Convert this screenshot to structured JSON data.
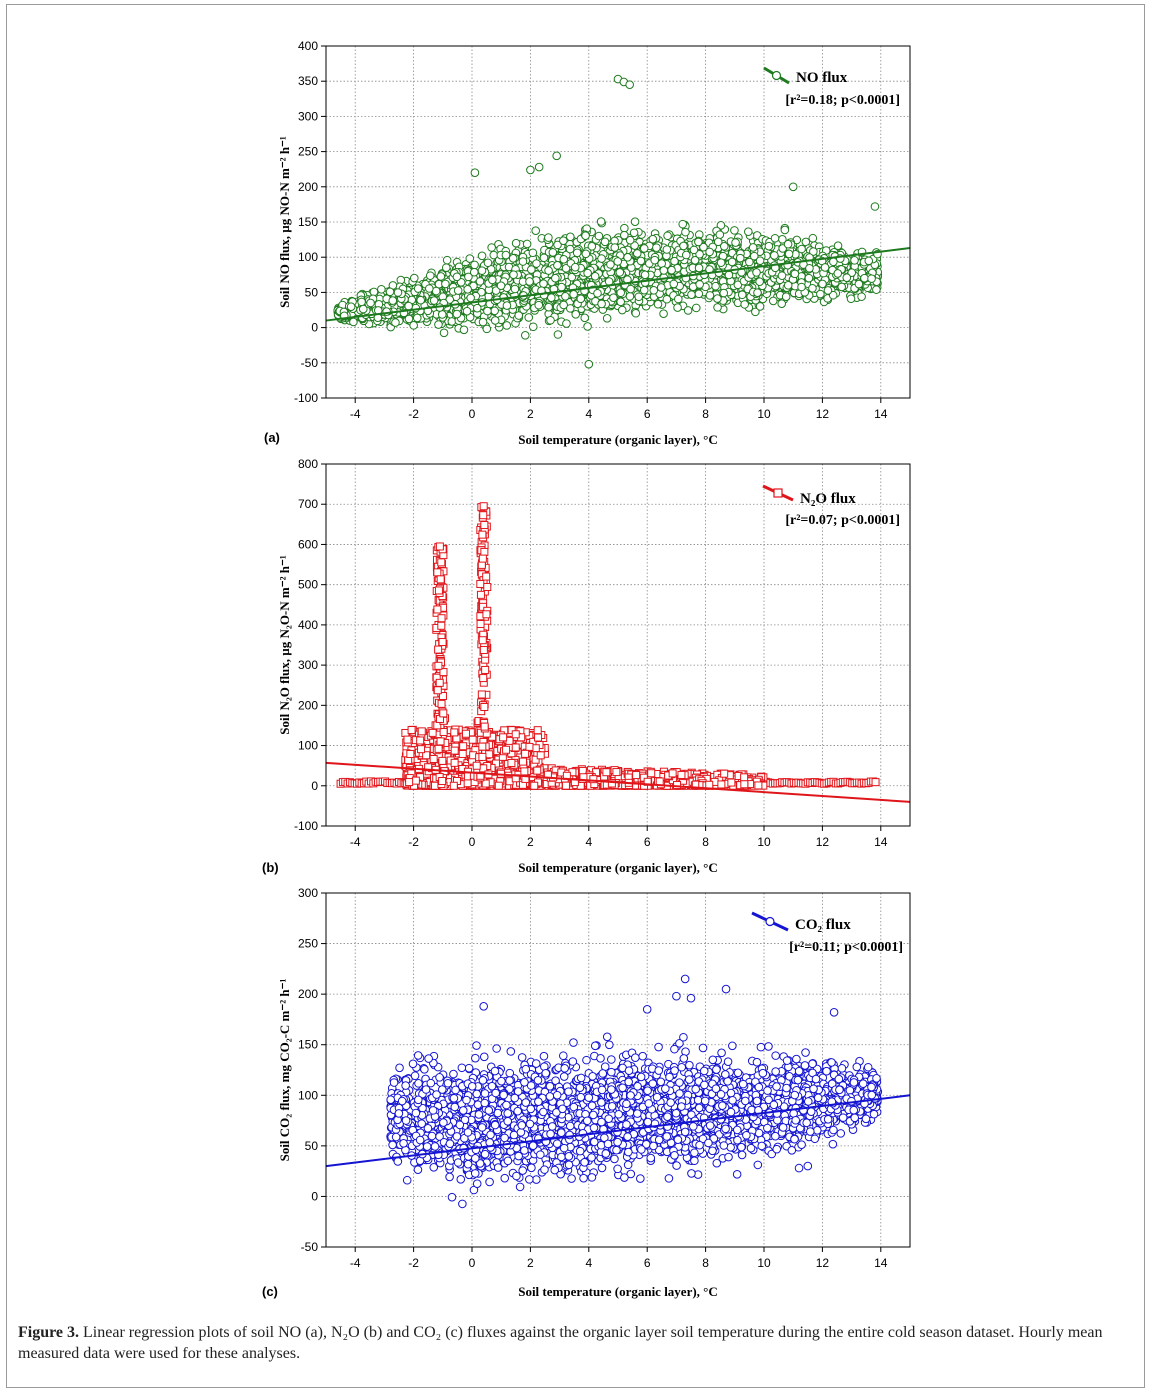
{
  "chart_data": [
    {
      "type": "scatter",
      "panel_label": "(a)",
      "xlabel": "Soil temperature (organic layer), °C",
      "ylabel": "Soil NO flux, µg NO-N m⁻² h⁻¹",
      "xlim": [
        -5,
        15
      ],
      "ylim": [
        -100,
        400
      ],
      "x_ticks": [
        "-4",
        "-2",
        "0",
        "2",
        "4",
        "6",
        "8",
        "10",
        "12",
        "14"
      ],
      "y_ticks": [
        "-100",
        "-50",
        "0",
        "50",
        "100",
        "150",
        "200",
        "250",
        "300",
        "350",
        "400"
      ],
      "grid": true,
      "legend_position": "top-right",
      "series": [
        {
          "name": "NO flux",
          "marker": "circle",
          "color": "#1e7a1e"
        }
      ],
      "regression": {
        "x": [
          -5,
          15
        ],
        "y": [
          10,
          113
        ]
      },
      "stat_text": "[r²=0.18; p<0.0001]",
      "point_cloud": {
        "x_min": -4.6,
        "x_max": 13.9,
        "center": {
          "x": [
            -4.5,
            0,
            4,
            8,
            12,
            14
          ],
          "y": [
            22,
            50,
            75,
            85,
            80,
            75
          ]
        },
        "spread": {
          "x": [
            -4.5,
            0,
            4,
            8,
            12,
            14
          ],
          "y": [
            10,
            45,
            55,
            50,
            35,
            25
          ]
        },
        "count": 3500
      },
      "outliers": [
        {
          "x": 5.0,
          "y": 353
        },
        {
          "x": 5.2,
          "y": 349
        },
        {
          "x": 5.4,
          "y": 345
        },
        {
          "x": 2.9,
          "y": 244
        },
        {
          "x": 2.3,
          "y": 228
        },
        {
          "x": 2.0,
          "y": 224
        },
        {
          "x": 0.1,
          "y": 220
        },
        {
          "x": 4.0,
          "y": -52
        },
        {
          "x": 11.0,
          "y": 200
        },
        {
          "x": 13.8,
          "y": 172
        }
      ]
    },
    {
      "type": "scatter",
      "panel_label": "(b)",
      "xlabel": "Soil temperature (organic layer), °C",
      "ylabel": "Soil N₂O flux, µg N₂O-N m⁻² h⁻¹",
      "xlim": [
        -5,
        15
      ],
      "ylim": [
        -100,
        800
      ],
      "x_ticks": [
        "-4",
        "-2",
        "0",
        "2",
        "4",
        "6",
        "8",
        "10",
        "12",
        "14"
      ],
      "y_ticks": [
        "-100",
        "0",
        "100",
        "200",
        "300",
        "400",
        "500",
        "600",
        "700",
        "800"
      ],
      "grid": true,
      "legend_position": "top-right",
      "series": [
        {
          "name": "N₂O flux",
          "marker": "square",
          "color": "#e0151a"
        }
      ],
      "regression": {
        "x": [
          -5,
          15
        ],
        "y": [
          57,
          -40
        ]
      },
      "stat_text": "[r²=0.07; p<0.0001]",
      "baseline": {
        "x": [
          -4.5,
          13.9
        ],
        "y": 8
      },
      "spikes": [
        {
          "x": -1.1,
          "y_max": 595
        },
        {
          "x": 0.4,
          "y_max": 695
        }
      ],
      "low_cluster": {
        "x": [
          -2.3,
          2.5
        ],
        "y_max": 140
      },
      "tail": {
        "x": [
          2.5,
          10.0
        ],
        "y_max": 45
      }
    },
    {
      "type": "scatter",
      "panel_label": "(c)",
      "xlabel": "Soil temperature (organic layer), °C",
      "ylabel": "Soil CO₂ flux, mg CO₂-C m⁻² h⁻¹",
      "xlim": [
        -5,
        15
      ],
      "ylim": [
        -50,
        300
      ],
      "x_ticks": [
        "-4",
        "-2",
        "0",
        "2",
        "4",
        "6",
        "8",
        "10",
        "12",
        "14"
      ],
      "y_ticks": [
        "-50",
        "0",
        "50",
        "100",
        "150",
        "200",
        "250",
        "300"
      ],
      "grid": true,
      "legend_position": "top-right",
      "series": [
        {
          "name": "CO₂ flux",
          "marker": "circle",
          "color": "#1414d2"
        }
      ],
      "regression": {
        "x": [
          -5,
          15
        ],
        "y": [
          30,
          100
        ]
      },
      "stat_text": "[r²=0.11; p<0.0001]",
      "point_cloud": {
        "x_min": -2.8,
        "x_max": 13.9,
        "center": {
          "x": [
            -2.8,
            0,
            4,
            8,
            12,
            14
          ],
          "y": [
            80,
            75,
            80,
            85,
            95,
            100
          ]
        },
        "spread": {
          "x": [
            -2.8,
            0,
            4,
            8,
            12,
            14
          ],
          "y": [
            40,
            55,
            55,
            50,
            35,
            20
          ]
        },
        "count": 3500
      },
      "outliers": [
        {
          "x": 7.3,
          "y": 215
        },
        {
          "x": 8.7,
          "y": 205
        },
        {
          "x": 7.0,
          "y": 198
        },
        {
          "x": 7.5,
          "y": 196
        },
        {
          "x": 6.0,
          "y": 185
        },
        {
          "x": 0.4,
          "y": 188
        },
        {
          "x": 12.4,
          "y": 182
        },
        {
          "x": 11.5,
          "y": 30
        },
        {
          "x": 11.2,
          "y": 28
        }
      ]
    }
  ],
  "caption": {
    "label": "Figure 3.",
    "text": "Linear regression plots of soil NO (a), N₂O (b) and CO₂ (c) fluxes against the organic layer soil temperature during the entire cold season dataset. Hourly mean measured data were used for these analyses."
  }
}
